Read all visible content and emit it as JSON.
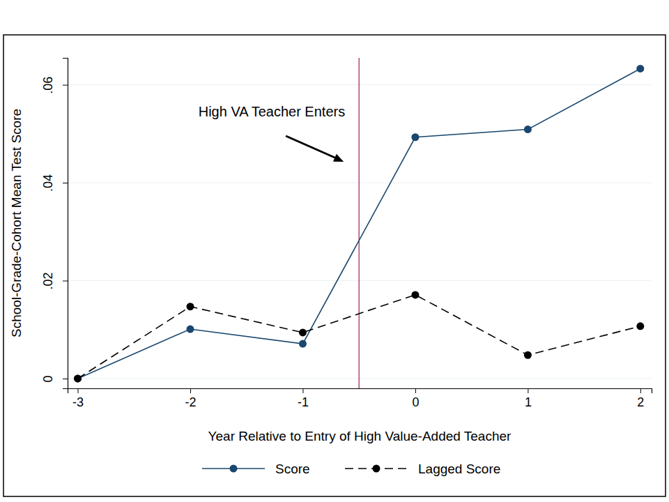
{
  "chart_data": {
    "type": "line",
    "x_label": "Year Relative to Entry of High Value-Added Teacher",
    "y_label": "School-Grade-Cohort Mean Test Score",
    "x": [
      -3,
      -2,
      -1,
      0,
      1,
      2
    ],
    "series": [
      {
        "name": "Score",
        "color": "#1a476f",
        "marker": "circle",
        "line_style": "solid",
        "values": [
          0,
          0.0101,
          0.0071,
          0.0493,
          0.0509,
          0.0633
        ]
      },
      {
        "name": "Lagged Score",
        "color": "#000000",
        "marker": "circle",
        "line_style": "dashed",
        "values": [
          0,
          0.0147,
          0.0094,
          0.0171,
          0.0048,
          0.0107
        ]
      }
    ],
    "xlim": [
      -3.09,
      2.1
    ],
    "xticks": [
      -3,
      -2,
      -1,
      0,
      1,
      2
    ],
    "ylim": [
      -0.002,
      0.0655
    ],
    "yticks": [
      {
        "value": 0,
        "label": "0"
      },
      {
        "value": 0.02,
        "label": ".02"
      },
      {
        "value": 0.04,
        "label": ".04"
      },
      {
        "value": 0.06,
        "label": ".06"
      }
    ],
    "grid": true,
    "legend": "bottom",
    "annotations": [
      {
        "text": "High VA Teacher Enters",
        "x": -0.5
      }
    ]
  }
}
